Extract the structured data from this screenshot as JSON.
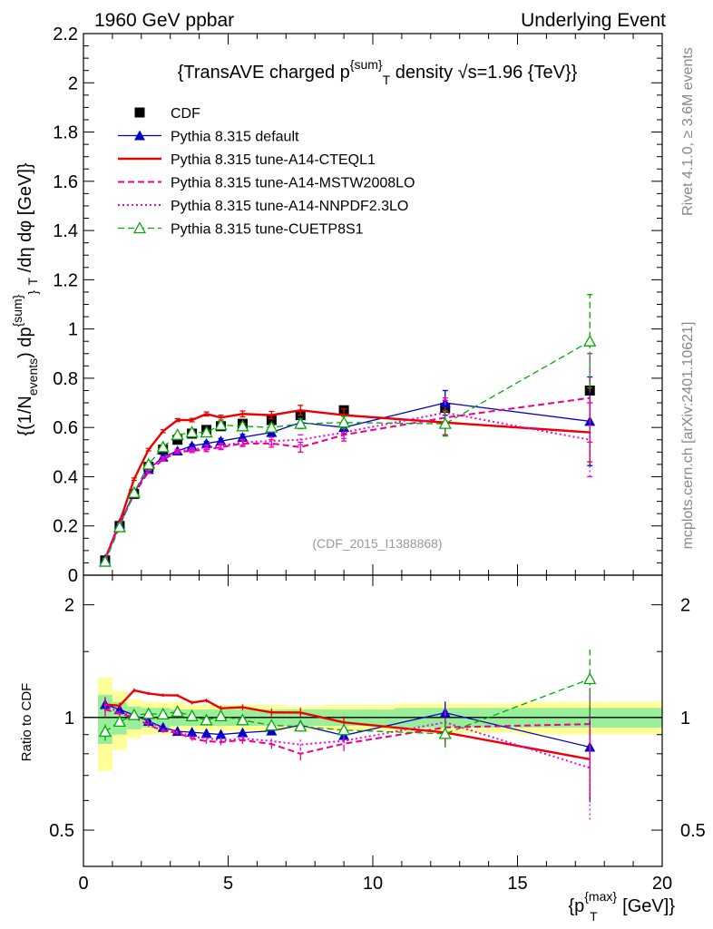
{
  "header": {
    "left": "1960 GeV ppbar",
    "right": "Underlying Event"
  },
  "side": {
    "rivet": "Rivet 4.1.0, ≥ 3.6M events",
    "mcplots": "mcplots.cern.ch [arXiv:2401.10621]"
  },
  "legend": {
    "title": "{TransAVE charged p^{sum}_T density √s=1.96 {TeV}}"
  },
  "chart_data": {
    "type": "line",
    "title": "{TransAVE charged p^{sum}_T density √s=1.96 {TeV}}",
    "analysis_label": "(CDF_2015_I1388868)",
    "xlabel": "{p_T^{max} [GeV]}",
    "ylabel": "{(1/N_events) dp^{sum}_T /dη dφ [GeV]}",
    "ratio_ylabel": "Ratio to CDF",
    "xlim": [
      0,
      20
    ],
    "ylim": [
      0,
      2.2
    ],
    "ratio_ylim": [
      0.4,
      2.4
    ],
    "x": [
      0.75,
      1.25,
      1.75,
      2.25,
      2.75,
      3.25,
      3.75,
      4.25,
      4.75,
      5.5,
      6.5,
      7.5,
      9.0,
      12.5,
      17.5
    ],
    "data": {
      "name": "CDF",
      "values": [
        0.06,
        0.2,
        0.33,
        0.44,
        0.51,
        0.55,
        0.575,
        0.59,
        0.605,
        0.615,
        0.63,
        0.65,
        0.67,
        0.68,
        0.75
      ],
      "band_inner": [
        0.15,
        0.1,
        0.07,
        0.06,
        0.06,
        0.05,
        0.05,
        0.05,
        0.05,
        0.05,
        0.05,
        0.05,
        0.05,
        0.06,
        0.06
      ],
      "band_outer": [
        0.28,
        0.18,
        0.12,
        0.1,
        0.1,
        0.1,
        0.08,
        0.08,
        0.08,
        0.08,
        0.08,
        0.07,
        0.08,
        0.09,
        0.1
      ]
    },
    "series": [
      {
        "name": "Pythia 8.315 default",
        "color": "#0000cc",
        "style": "solid-triangle",
        "values": [
          0.065,
          0.21,
          0.335,
          0.43,
          0.48,
          0.505,
          0.525,
          0.535,
          0.545,
          0.56,
          0.58,
          0.62,
          0.6,
          0.7,
          0.625
        ]
      },
      {
        "name": "Pythia 8.315 tune-A14-CTEQL1",
        "color": "#ee0000",
        "style": "solid",
        "values": [
          0.065,
          0.215,
          0.39,
          0.51,
          0.585,
          0.63,
          0.63,
          0.655,
          0.64,
          0.655,
          0.65,
          0.67,
          0.65,
          0.62,
          0.58
        ]
      },
      {
        "name": "Pythia 8.315 tune-A14-MSTW2008LO",
        "color": "#ee0088",
        "style": "dashed",
        "values": [
          0.063,
          0.205,
          0.33,
          0.42,
          0.47,
          0.5,
          0.505,
          0.51,
          0.52,
          0.535,
          0.535,
          0.52,
          0.57,
          0.64,
          0.72
        ]
      },
      {
        "name": "Pythia 8.315 tune-A14-NNPDF2.3LO",
        "color": "#ee00ee",
        "style": "dotted",
        "values": [
          0.065,
          0.205,
          0.335,
          0.43,
          0.475,
          0.505,
          0.51,
          0.52,
          0.525,
          0.54,
          0.545,
          0.55,
          0.58,
          0.66,
          0.55
        ]
      },
      {
        "name": "Pythia 8.315 tune-CUETP8S1",
        "color": "#00aa00",
        "style": "dashed-open-triangle",
        "values": [
          0.055,
          0.195,
          0.335,
          0.45,
          0.52,
          0.57,
          0.58,
          0.58,
          0.61,
          0.605,
          0.6,
          0.615,
          0.62,
          0.615,
          0.95
        ]
      }
    ],
    "series_errors": {
      "Pythia 8.315 default": [
        0.003,
        0.004,
        0.005,
        0.005,
        0.006,
        0.006,
        0.007,
        0.008,
        0.01,
        0.012,
        0.015,
        0.02,
        0.025,
        0.05,
        0.18
      ],
      "Pythia 8.315 tune-A14-CTEQL1": [
        0.003,
        0.004,
        0.005,
        0.005,
        0.006,
        0.006,
        0.007,
        0.008,
        0.01,
        0.012,
        0.015,
        0.02,
        0.025,
        0.05,
        0.12
      ],
      "Pythia 8.315 tune-A14-MSTW2008LO": [
        0.003,
        0.004,
        0.005,
        0.005,
        0.006,
        0.006,
        0.007,
        0.008,
        0.01,
        0.012,
        0.015,
        0.02,
        0.025,
        0.07,
        0.18
      ],
      "Pythia 8.315 tune-A14-NNPDF2.3LO": [
        0.003,
        0.004,
        0.005,
        0.005,
        0.006,
        0.006,
        0.007,
        0.008,
        0.01,
        0.012,
        0.015,
        0.02,
        0.025,
        0.06,
        0.15
      ],
      "Pythia 8.315 tune-CUETP8S1": [
        0.003,
        0.004,
        0.005,
        0.005,
        0.006,
        0.006,
        0.007,
        0.008,
        0.01,
        0.012,
        0.015,
        0.02,
        0.025,
        0.05,
        0.19
      ]
    },
    "x_ticks": [
      "0",
      "5",
      "10",
      "15",
      "20"
    ],
    "y_ticks": [
      "0",
      "0.2",
      "0.4",
      "0.6",
      "0.8",
      "1",
      "1.2",
      "1.4",
      "1.6",
      "1.8",
      "2",
      "2.2"
    ],
    "ratio_ticks": [
      "0.5",
      "1",
      "2"
    ]
  }
}
